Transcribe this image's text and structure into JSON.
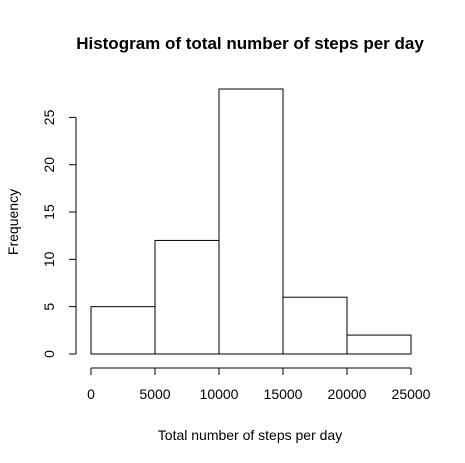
{
  "chart_data": {
    "type": "bar",
    "title": "Histogram of total number of steps per day",
    "xlabel": "Total number of steps per day",
    "ylabel": "Frequency",
    "bins": [
      {
        "start": 0,
        "end": 5000,
        "count": 5
      },
      {
        "start": 5000,
        "end": 10000,
        "count": 12
      },
      {
        "start": 10000,
        "end": 15000,
        "count": 28
      },
      {
        "start": 15000,
        "end": 20000,
        "count": 6
      },
      {
        "start": 20000,
        "end": 25000,
        "count": 2
      }
    ],
    "xlim": [
      0,
      25000
    ],
    "ylim": [
      0,
      28
    ],
    "x_ticks": [
      0,
      5000,
      10000,
      15000,
      20000,
      25000
    ],
    "y_ticks": [
      0,
      5,
      10,
      15,
      20,
      25
    ],
    "grid": false,
    "colors": {
      "bar_fill": "#ffffff",
      "bar_stroke": "#000000"
    }
  }
}
